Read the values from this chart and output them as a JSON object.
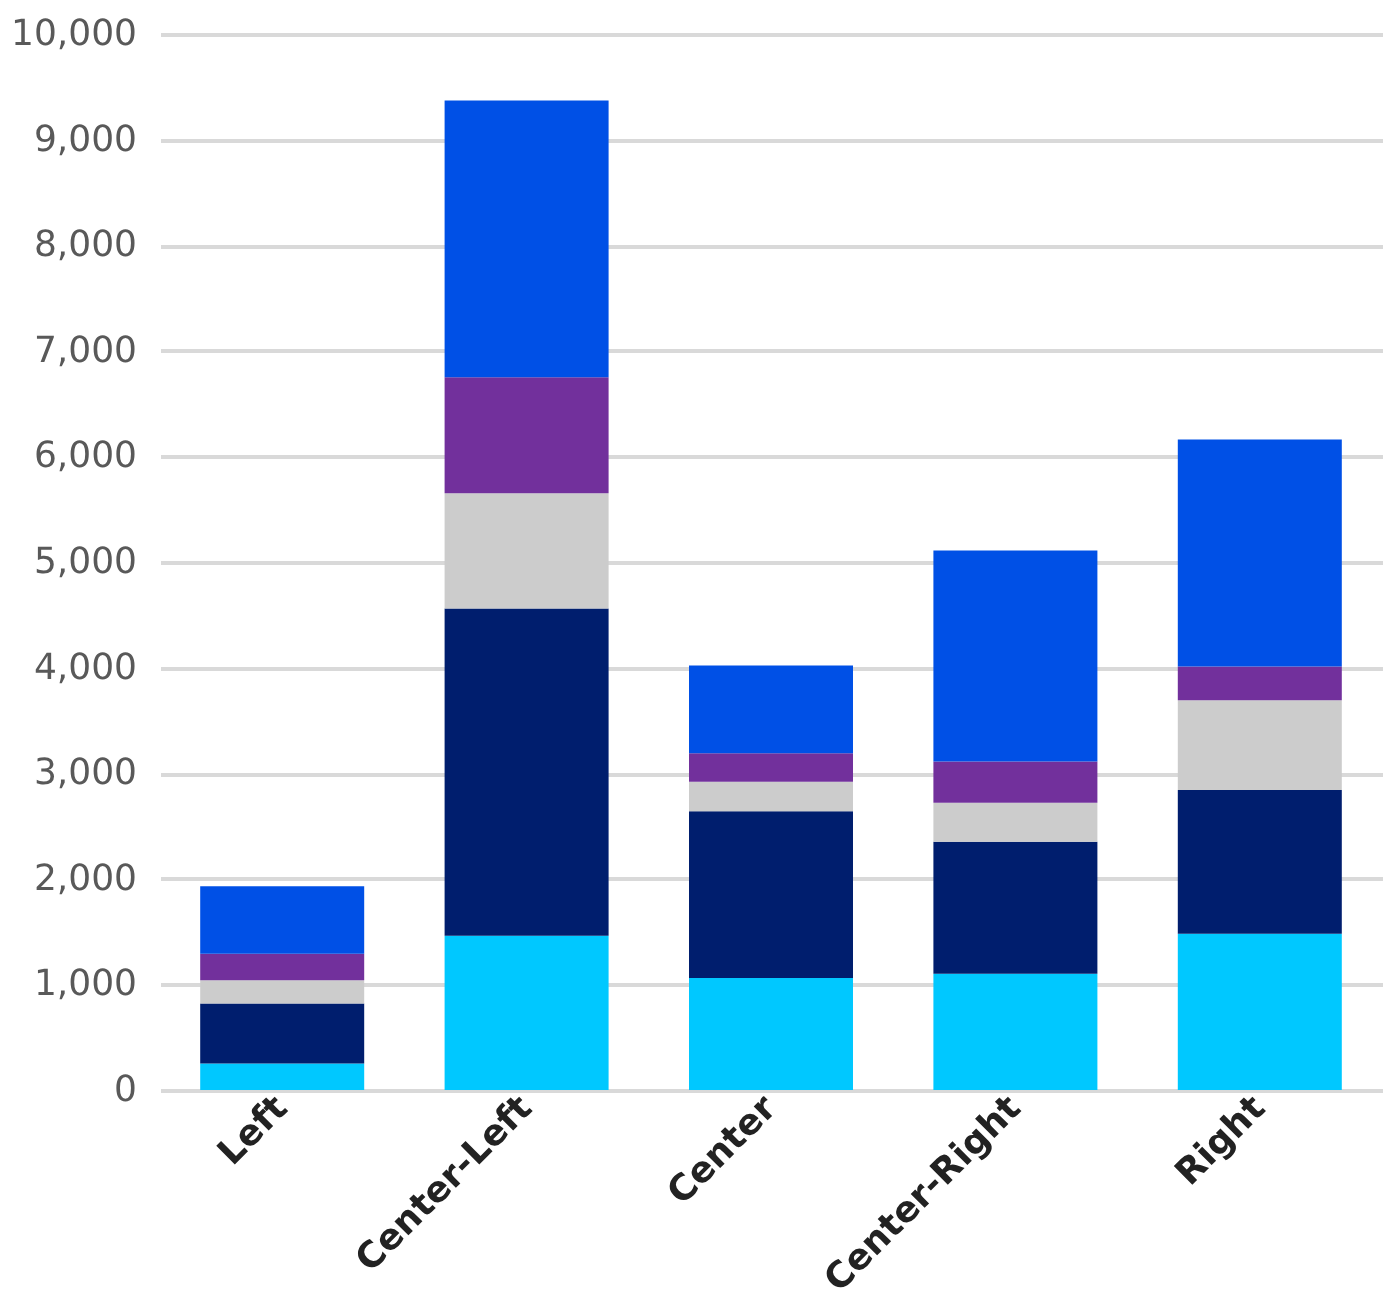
{
  "chart_data": {
    "type": "bar",
    "stacked": true,
    "categories": [
      "Left",
      "Center-Left",
      "Center",
      "Center-Right",
      "Right"
    ],
    "series": [
      {
        "color": "#00c8ff",
        "values": [
          250,
          1460,
          1060,
          1100,
          1480
        ]
      },
      {
        "color": "#001e6e",
        "values": [
          570,
          3100,
          1580,
          1250,
          1360
        ]
      },
      {
        "color": "#cccccc",
        "values": [
          220,
          1090,
          280,
          370,
          850
        ]
      },
      {
        "color": "#72309c",
        "values": [
          250,
          1100,
          270,
          390,
          320
        ]
      },
      {
        "color": "#0050e6",
        "values": [
          640,
          2620,
          830,
          2000,
          2150
        ]
      }
    ],
    "ylim": [
      0,
      10000
    ],
    "yticks": [
      {
        "value": 0,
        "label": "0"
      },
      {
        "value": 1000,
        "label": "1,000"
      },
      {
        "value": 2000,
        "label": "2,000"
      },
      {
        "value": 3000,
        "label": "3,000"
      },
      {
        "value": 4000,
        "label": "4,000"
      },
      {
        "value": 5000,
        "label": "5,000"
      },
      {
        "value": 6000,
        "label": "6,000"
      },
      {
        "value": 7000,
        "label": "7,000"
      },
      {
        "value": 8000,
        "label": "8,000"
      },
      {
        "value": 9000,
        "label": "9,000"
      },
      {
        "value": 10000,
        "label": "10,000"
      }
    ],
    "grid": "y",
    "legend": false
  }
}
